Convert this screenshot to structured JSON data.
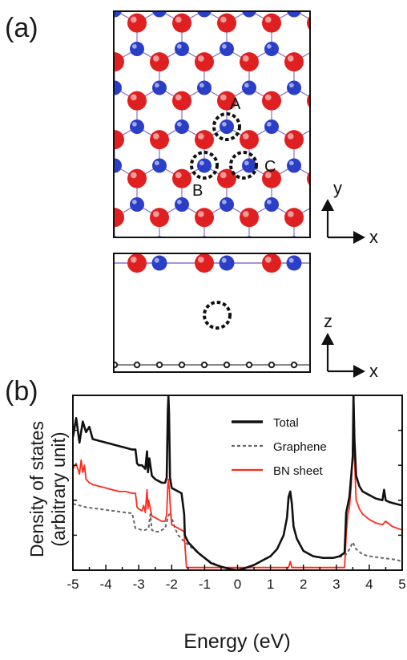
{
  "panel_a": {
    "label": "(a)",
    "site_labels": [
      "A",
      "B",
      "C"
    ],
    "top_axes": {
      "vertical": "y",
      "horizontal": "x"
    },
    "side_axes": {
      "vertical": "z",
      "horizontal": "x"
    },
    "colors": {
      "boron": "#e02020",
      "nitrogen": "#2a3ec8",
      "carbon": "#222222",
      "bn_bond": "#8a6fc8"
    }
  },
  "panel_b": {
    "label": "(b)"
  },
  "chart_data": {
    "type": "line",
    "xlabel": "Energy (eV)",
    "ylabel_lines": [
      "Density of states",
      "(arbitrary unit)"
    ],
    "xlim": [
      -5,
      5
    ],
    "xticks": [
      -5,
      -4.5,
      -4,
      -3.5,
      -3,
      -2.5,
      -2,
      -1.5,
      -1,
      -0.5,
      0,
      0.5,
      1,
      1.5,
      2,
      2.5,
      3,
      3.5,
      4,
      4.5,
      5
    ],
    "xtick_labels": [
      "-5",
      "-4",
      "-3",
      "-2",
      "-1",
      "0",
      "1",
      "2",
      "3",
      "4",
      "5"
    ],
    "ylim": [
      0,
      10
    ],
    "legend_position": "top-right",
    "series": [
      {
        "name": "Total",
        "color": "#111111",
        "dash": "solid",
        "x": [
          -5,
          -4.9,
          -4.8,
          -4.7,
          -4.6,
          -4.5,
          -4.4,
          -4.2,
          -4.0,
          -3.8,
          -3.6,
          -3.4,
          -3.2,
          -3.1,
          -3.05,
          -3.0,
          -2.9,
          -2.8,
          -2.75,
          -2.72,
          -2.68,
          -2.6,
          -2.5,
          -2.4,
          -2.3,
          -2.2,
          -2.15,
          -2.12,
          -2.1,
          -2.08,
          -2.05,
          -2.0,
          -1.9,
          -1.8,
          -1.7,
          -1.62,
          -1.6,
          -1.5,
          -1.2,
          -1.0,
          -0.8,
          -0.5,
          -0.2,
          0,
          0.2,
          0.5,
          0.8,
          1.0,
          1.2,
          1.4,
          1.5,
          1.55,
          1.6,
          1.65,
          1.7,
          1.8,
          2.0,
          2.3,
          2.6,
          2.9,
          3.1,
          3.25,
          3.3,
          3.4,
          3.5,
          3.52,
          3.55,
          3.6,
          3.7,
          3.8,
          4.0,
          4.2,
          4.4,
          4.45,
          4.5,
          4.6,
          4.8,
          5.0
        ],
        "y": [
          7.6,
          8.7,
          7.3,
          8.5,
          7.9,
          8.2,
          7.5,
          7.4,
          7.3,
          7.2,
          7.1,
          7.0,
          6.9,
          6.9,
          6.1,
          6.0,
          6.0,
          5.8,
          6.8,
          5.6,
          6.4,
          5.4,
          5.2,
          5.1,
          5.0,
          5.0,
          5.3,
          9.0,
          10.0,
          9.0,
          5.3,
          4.7,
          4.6,
          4.5,
          4.4,
          3.2,
          2.0,
          1.6,
          1.0,
          0.7,
          0.4,
          0.2,
          0.05,
          0,
          0.1,
          0.3,
          0.6,
          0.8,
          1.2,
          2.0,
          3.0,
          4.2,
          4.5,
          3.8,
          2.5,
          1.8,
          1.1,
          0.8,
          0.7,
          0.7,
          0.8,
          1.0,
          3.3,
          4.2,
          6.5,
          10.0,
          7.5,
          5.4,
          4.8,
          4.5,
          4.3,
          4.1,
          4.0,
          4.6,
          4.0,
          3.9,
          3.8,
          3.7
        ]
      },
      {
        "name": "Graphene",
        "color": "#666666",
        "dash": "dashed",
        "x": [
          -5,
          -4.8,
          -4.6,
          -4.4,
          -4.2,
          -4.0,
          -3.8,
          -3.6,
          -3.4,
          -3.2,
          -3.1,
          -3.0,
          -2.9,
          -2.8,
          -2.7,
          -2.65,
          -2.6,
          -2.5,
          -2.4,
          -2.3,
          -2.2,
          -2.1,
          -2.05,
          -2.0,
          -1.9,
          -1.8,
          -1.6,
          -1.4,
          -1.2,
          -1.0,
          -0.8,
          -0.5,
          -0.2,
          0,
          0.2,
          0.5,
          0.8,
          1.0,
          1.2,
          1.4,
          1.5,
          1.55,
          1.6,
          1.65,
          1.7,
          1.8,
          2.0,
          2.3,
          2.6,
          2.9,
          3.2,
          3.3,
          3.4,
          3.5,
          3.6,
          3.8,
          4.0,
          4.4,
          4.8,
          5.0
        ],
        "y": [
          3.8,
          3.7,
          3.6,
          3.55,
          3.5,
          3.45,
          3.4,
          3.35,
          3.3,
          3.25,
          2.4,
          2.35,
          2.3,
          2.3,
          2.4,
          3.2,
          2.3,
          2.2,
          2.2,
          2.3,
          2.4,
          3.1,
          3.3,
          3.0,
          2.4,
          2.0,
          1.6,
          1.3,
          1.0,
          0.7,
          0.45,
          0.2,
          0.05,
          0,
          0.1,
          0.3,
          0.6,
          0.8,
          1.2,
          2.0,
          3.0,
          4.0,
          4.5,
          3.8,
          2.5,
          1.8,
          1.1,
          0.8,
          0.7,
          0.7,
          0.8,
          0.9,
          1.2,
          1.6,
          1.2,
          0.9,
          0.8,
          0.7,
          0.6,
          0.5
        ]
      },
      {
        "name": "BN sheet",
        "color": "#ff2a1a",
        "dash": "solid",
        "x": [
          -5,
          -4.9,
          -4.8,
          -4.75,
          -4.7,
          -4.65,
          -4.6,
          -4.5,
          -4.4,
          -4.2,
          -4.0,
          -3.8,
          -3.6,
          -3.4,
          -3.2,
          -3.1,
          -3.05,
          -3.0,
          -2.9,
          -2.85,
          -2.8,
          -2.75,
          -2.72,
          -2.7,
          -2.6,
          -2.5,
          -2.4,
          -2.3,
          -2.2,
          -2.15,
          -2.12,
          -2.1,
          -2.07,
          -2.03,
          -2.0,
          -1.9,
          -1.8,
          -1.7,
          -1.62,
          -1.6,
          -1.55,
          -1.0,
          0,
          1.0,
          1.55,
          1.6,
          1.65,
          2.0,
          3.0,
          3.25,
          3.3,
          3.35,
          3.4,
          3.45,
          3.5,
          3.52,
          3.55,
          3.6,
          3.7,
          3.8,
          4.0,
          4.2,
          4.4,
          4.5,
          4.7,
          5.0
        ],
        "y": [
          5.8,
          6.1,
          5.5,
          6.3,
          5.6,
          6.0,
          5.2,
          5.0,
          4.9,
          4.8,
          4.7,
          4.6,
          4.5,
          4.5,
          4.4,
          4.4,
          3.6,
          3.5,
          3.4,
          3.7,
          3.3,
          4.6,
          3.5,
          4.0,
          3.1,
          3.0,
          2.9,
          2.8,
          2.8,
          3.2,
          4.8,
          5.2,
          4.6,
          3.2,
          2.6,
          2.5,
          2.4,
          2.3,
          2.2,
          1.5,
          0.15,
          0.15,
          0.15,
          0.15,
          0.15,
          0.5,
          0.15,
          0.15,
          0.15,
          0.15,
          2.0,
          3.2,
          3.6,
          4.8,
          7.0,
          10.0,
          6.5,
          4.0,
          3.5,
          3.2,
          2.9,
          2.7,
          2.6,
          2.8,
          2.5,
          2.3
        ]
      }
    ]
  }
}
